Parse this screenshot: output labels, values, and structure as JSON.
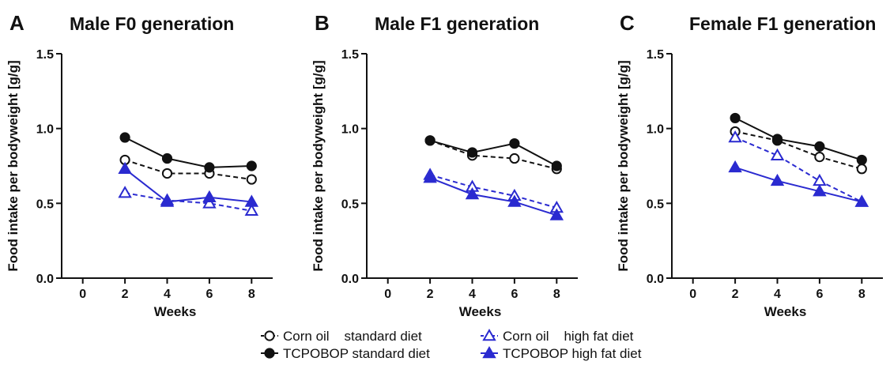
{
  "colors": {
    "black": "#111111",
    "blue": "#2a2ad0"
  },
  "legend": {
    "position": "bottom-center",
    "items": [
      {
        "label": "Corn oil    standard diet",
        "color": "#111111",
        "marker": "circle",
        "filled": false,
        "dashed": true
      },
      {
        "label": "TCPOBOP standard diet",
        "color": "#111111",
        "marker": "circle",
        "filled": true,
        "dashed": false
      },
      {
        "label": "Corn oil    high fat diet",
        "color": "#2a2ad0",
        "marker": "triangle",
        "filled": false,
        "dashed": true
      },
      {
        "label": "TCPOBOP high fat diet",
        "color": "#2a2ad0",
        "marker": "triangle",
        "filled": true,
        "dashed": false
      }
    ]
  },
  "chart_data": [
    {
      "type": "line",
      "panel_label": "A",
      "title": "Male F0 generation",
      "xlabel": "Weeks",
      "ylabel": "Food intake per bodyweight [g/g]",
      "xlim": [
        -1,
        9
      ],
      "ylim": [
        0,
        1.5
      ],
      "xticks": [
        "0",
        "2",
        "4",
        "6",
        "8"
      ],
      "yticks": [
        "0.0",
        "0.5",
        "1.0",
        "1.5"
      ],
      "x": [
        2,
        4,
        6,
        8
      ],
      "series": [
        {
          "name": "Corn oil standard diet",
          "values": [
            0.79,
            0.7,
            0.7,
            0.66
          ]
        },
        {
          "name": "TCPOBOP standard diet",
          "values": [
            0.94,
            0.8,
            0.74,
            0.75
          ]
        },
        {
          "name": "Corn oil high fat diet",
          "values": [
            0.57,
            0.52,
            0.5,
            0.45
          ]
        },
        {
          "name": "TCPOBOP high fat diet",
          "values": [
            0.73,
            0.51,
            0.54,
            0.51
          ]
        }
      ]
    },
    {
      "type": "line",
      "panel_label": "B",
      "title": "Male F1 generation",
      "xlabel": "Weeks",
      "ylabel": "Food intake per bodyweight [g/g]",
      "xlim": [
        -1,
        9
      ],
      "ylim": [
        0,
        1.5
      ],
      "xticks": [
        "0",
        "2",
        "4",
        "6",
        "8"
      ],
      "yticks": [
        "0.0",
        "0.5",
        "1.0",
        "1.5"
      ],
      "x": [
        2,
        4,
        6,
        8
      ],
      "series": [
        {
          "name": "Corn oil standard diet",
          "values": [
            0.92,
            0.82,
            0.8,
            0.73
          ]
        },
        {
          "name": "TCPOBOP standard diet",
          "values": [
            0.92,
            0.84,
            0.9,
            0.75
          ]
        },
        {
          "name": "Corn oil high fat diet",
          "values": [
            0.69,
            0.61,
            0.55,
            0.47
          ]
        },
        {
          "name": "TCPOBOP high fat diet",
          "values": [
            0.67,
            0.56,
            0.51,
            0.42
          ]
        }
      ]
    },
    {
      "type": "line",
      "panel_label": "C",
      "title": "Female F1 generation",
      "xlabel": "Weeks",
      "ylabel": "Food intake per bodyweight [g/g]",
      "xlim": [
        -1,
        9
      ],
      "ylim": [
        0,
        1.5
      ],
      "xticks": [
        "0",
        "2",
        "4",
        "6",
        "8"
      ],
      "yticks": [
        "0.0",
        "0.5",
        "1.0",
        "1.5"
      ],
      "x": [
        2,
        4,
        6,
        8
      ],
      "series": [
        {
          "name": "Corn oil standard diet",
          "values": [
            0.98,
            0.92,
            0.81,
            0.73
          ]
        },
        {
          "name": "TCPOBOP standard diet",
          "values": [
            1.07,
            0.93,
            0.88,
            0.79
          ]
        },
        {
          "name": "Corn oil high fat diet",
          "values": [
            0.94,
            0.82,
            0.65,
            0.51
          ]
        },
        {
          "name": "TCPOBOP high fat diet",
          "values": [
            0.74,
            0.65,
            0.58,
            0.51
          ]
        }
      ]
    }
  ]
}
